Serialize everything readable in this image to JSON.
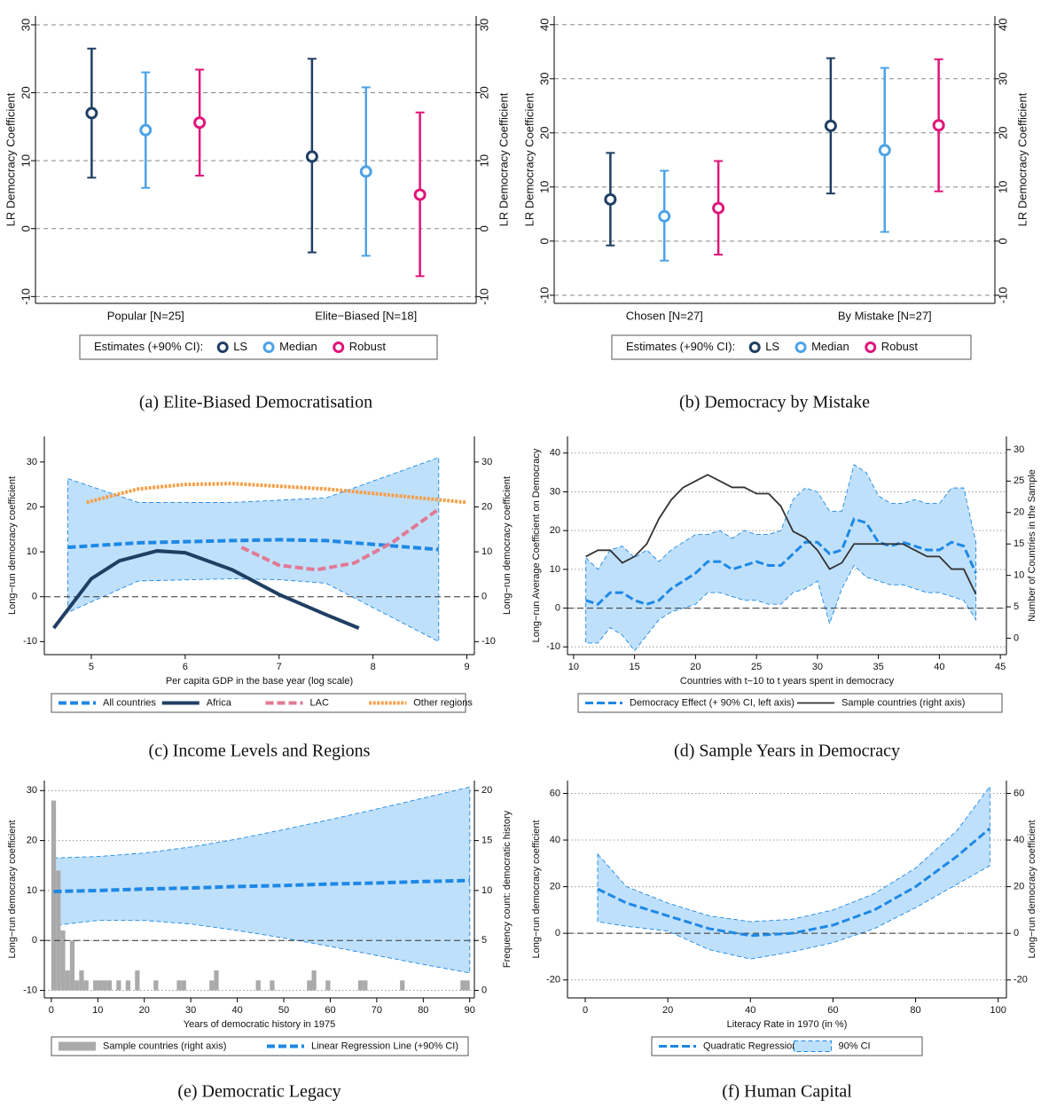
{
  "chart_data": [
    {
      "type": "errorbar",
      "caption": "(a) Elite-Biased Democratisation",
      "ylabel": "LR Democracy Coefficient",
      "y2label": "LR Democracy Coefficient",
      "categories": [
        "Popular [N=25]",
        "Elite−Biased [N=18]"
      ],
      "legend_title": "Estimates (+90% CI):",
      "series": [
        {
          "name": "LS",
          "color": "#1f3f63",
          "values": [
            17,
            10.6
          ],
          "lower": [
            7.5,
            -3.5
          ],
          "upper": [
            26.5,
            25
          ]
        },
        {
          "name": "Median",
          "color": "#4da3e8",
          "values": [
            14.5,
            8.4
          ],
          "lower": [
            6,
            -4
          ],
          "upper": [
            23,
            20.8
          ]
        },
        {
          "name": "Robust",
          "color": "#e0157a",
          "values": [
            15.6,
            5
          ],
          "lower": [
            7.8,
            -7
          ],
          "upper": [
            23.4,
            17.1
          ]
        }
      ],
      "ylim": [
        -11,
        31.3
      ],
      "yticks": [
        -10,
        0,
        10,
        20,
        30
      ],
      "grid": true,
      "grid_style": "dashed",
      "mirror_y": true
    },
    {
      "type": "errorbar",
      "caption": "(b) Democracy by Mistake",
      "ylabel": "LR Democracy Coefficient",
      "y2label": "LR Democracy Coefficient",
      "categories": [
        "Chosen [N=27]",
        "By Mistake [N=27]"
      ],
      "legend_title": "Estimates (+90% CI):",
      "series": [
        {
          "name": "LS",
          "color": "#1f3f63",
          "values": [
            7.7,
            21.3
          ],
          "lower": [
            -0.8,
            8.8
          ],
          "upper": [
            16.3,
            33.8
          ]
        },
        {
          "name": "Median",
          "color": "#4da3e8",
          "values": [
            4.6,
            16.8
          ],
          "lower": [
            -3.6,
            1.7
          ],
          "upper": [
            13,
            32
          ]
        },
        {
          "name": "Robust",
          "color": "#e0157a",
          "values": [
            6.1,
            21.4
          ],
          "lower": [
            -2.5,
            9.2
          ],
          "upper": [
            14.8,
            33.6
          ]
        }
      ],
      "ylim": [
        -11.5,
        41.6
      ],
      "yticks": [
        -10,
        0,
        10,
        20,
        30,
        40
      ],
      "grid": true,
      "grid_style": "dashed",
      "mirror_y": true
    },
    {
      "type": "line",
      "caption": "(c) Income Levels and Regions",
      "xlabel": "Per capita GDP in the base year (log scale)",
      "ylabel": "Long−run democracy coefficient",
      "y2label": "Long−run democracy coefficient",
      "series": [
        {
          "name": "All countries",
          "color": "#1e88e5",
          "dash": "dashed",
          "band_color": "#bfe0fb",
          "x": [
            4.75,
            5.5,
            6.5,
            7,
            7.5,
            8.7
          ],
          "values": [
            11,
            12,
            12.5,
            12.7,
            12.5,
            10.5
          ],
          "upper": [
            26.3,
            21,
            21,
            21.5,
            22,
            31
          ],
          "lower": [
            -3.5,
            3.5,
            4,
            3.8,
            3,
            -10
          ]
        },
        {
          "name": "Africa",
          "color": "#1f3f63",
          "dash": "solid",
          "x": [
            4.6,
            5,
            5.3,
            5.7,
            6,
            6.5,
            7,
            7.5,
            7.85
          ],
          "values": [
            -7,
            4,
            8,
            10.2,
            9.8,
            6,
            0.5,
            -4,
            -7
          ]
        },
        {
          "name": "LAC",
          "color": "#e07a94",
          "dash": "dashed",
          "x": [
            6.6,
            7,
            7.4,
            7.8,
            8.2,
            8.7
          ],
          "values": [
            11,
            7,
            6,
            7.5,
            12,
            19.5
          ]
        },
        {
          "name": "Other regions",
          "color": "#f5a04a",
          "dash": "dotted",
          "x": [
            4.95,
            5.5,
            6,
            6.5,
            7,
            7.5,
            8,
            8.5,
            9
          ],
          "values": [
            21,
            24,
            25,
            25.2,
            24.6,
            24,
            23,
            22,
            21
          ]
        }
      ],
      "xlim": [
        4.5,
        9.08
      ],
      "xticks": [
        5,
        6,
        7,
        8,
        9
      ],
      "ylim": [
        -12.9,
        35.7
      ],
      "yticks": [
        -10,
        0,
        10,
        20,
        30
      ],
      "grid": false,
      "mirror_y": true,
      "reference_line": 0
    },
    {
      "type": "line",
      "caption": "(d) Sample Years in Democracy",
      "xlabel": "Countries with t−10 to t years spent in democracy",
      "ylabel": "Long−run Average Coefficient on Democracy",
      "y2label": "Number of Countries in the Sample",
      "series": [
        {
          "name": "Democracy Effect (+ 90% CI, left axis)",
          "color": "#1e88e5",
          "dash": "dashed",
          "band_color": "#bfe0fb",
          "x": [
            11,
            12,
            13,
            14,
            15,
            16,
            17,
            18,
            19,
            20,
            21,
            22,
            23,
            24,
            25,
            26,
            27,
            28,
            29,
            30,
            31,
            32,
            33,
            34,
            35,
            36,
            37,
            38,
            39,
            40,
            41,
            42,
            43
          ],
          "values": [
            2,
            1,
            4,
            4,
            2,
            1,
            2,
            5,
            7,
            9,
            12,
            12,
            10,
            11,
            12,
            11,
            11,
            14,
            17,
            17,
            14,
            15,
            23,
            22,
            17,
            16,
            17,
            16,
            15,
            15,
            17,
            16,
            9
          ],
          "upper": [
            13,
            10,
            15,
            16,
            13,
            15,
            12,
            15,
            17,
            19,
            19,
            20,
            18,
            20,
            19,
            19,
            20,
            28,
            31,
            30,
            25,
            25,
            37,
            35,
            29,
            27,
            27,
            28,
            27,
            27,
            31,
            31,
            17
          ],
          "lower": [
            -9,
            -9,
            -5,
            -7,
            -11,
            -7,
            -3,
            -1,
            0,
            1,
            4,
            4,
            3,
            2,
            2,
            1,
            1,
            4,
            5,
            7,
            -4,
            5,
            11,
            8,
            7,
            6,
            6,
            5,
            4,
            4,
            3,
            2,
            -3
          ]
        },
        {
          "name": "Sample countries (right axis)",
          "color": "#333333",
          "dash": "solid",
          "axis": "y2",
          "x": [
            11,
            12,
            13,
            14,
            15,
            16,
            17,
            18,
            19,
            20,
            21,
            22,
            23,
            24,
            25,
            26,
            27,
            28,
            29,
            30,
            31,
            32,
            33,
            34,
            35,
            36,
            37,
            38,
            39,
            40,
            41,
            42,
            43
          ],
          "values": [
            13,
            14,
            14,
            12,
            13,
            15,
            19,
            22,
            24,
            25,
            26,
            25,
            24,
            24,
            23,
            23,
            21,
            17,
            16,
            14,
            11,
            12,
            15,
            15,
            15,
            15,
            15,
            14,
            13,
            13,
            11,
            11,
            7
          ]
        }
      ],
      "xlim": [
        9.5,
        45.5
      ],
      "xticks": [
        10,
        15,
        20,
        25,
        30,
        35,
        40,
        45
      ],
      "ylim": [
        -12,
        44.3
      ],
      "yticks": [
        -10,
        0,
        10,
        20,
        30,
        40
      ],
      "y2lim": [
        -2.6,
        32.1
      ],
      "y2ticks": [
        0,
        5,
        10,
        15,
        20,
        25,
        30
      ],
      "grid": true,
      "grid_style": "dotted",
      "reference_line": 0
    },
    {
      "type": "line",
      "caption": "(e) Democratic Legacy",
      "xlabel": "Years of democratic history in 1975",
      "ylabel": "Long−run democracy coefficient",
      "y2label": "Frequency count: democratic history",
      "histogram": {
        "name": "Sample countries (right axis)",
        "color": "#aaaaaa",
        "axis": "y2",
        "bins": [
          0,
          1,
          2,
          3,
          4,
          5,
          6,
          7,
          8,
          9,
          10,
          11,
          12,
          13,
          14,
          15,
          16,
          17,
          18,
          19,
          20,
          21,
          22,
          23,
          24,
          25,
          26,
          27,
          28,
          29,
          30,
          31,
          32,
          33,
          34,
          35,
          36,
          37,
          38,
          39,
          40,
          41,
          42,
          43,
          44,
          45,
          46,
          47,
          48,
          49,
          50,
          51,
          52,
          53,
          54,
          55,
          56,
          57,
          58,
          59,
          60,
          61,
          62,
          63,
          64,
          65,
          66,
          67,
          68,
          69,
          70,
          71,
          72,
          73,
          74,
          75,
          76,
          77,
          78,
          79,
          80,
          81,
          82,
          83,
          84,
          85,
          86,
          87,
          88,
          89,
          90
        ],
        "counts": [
          19,
          12,
          6,
          2,
          5,
          1,
          2,
          1,
          0,
          1,
          1,
          1,
          1,
          0,
          1,
          0,
          1,
          0,
          2,
          0,
          0,
          0,
          1,
          0,
          0,
          0,
          0,
          1,
          1,
          0,
          0,
          0,
          0,
          0,
          1,
          2,
          0,
          0,
          0,
          0,
          0,
          0,
          0,
          0,
          1,
          0,
          0,
          1,
          0,
          0,
          0,
          0,
          0,
          0,
          0,
          1,
          2,
          0,
          0,
          1,
          0,
          0,
          0,
          0,
          0,
          0,
          1,
          1,
          0,
          0,
          0,
          0,
          0,
          0,
          0,
          1,
          0,
          0,
          0,
          0,
          0,
          0,
          0,
          0,
          0,
          0,
          0,
          0,
          1,
          1
        ]
      },
      "series": [
        {
          "name": "Linear Regression Line (+90% CI)",
          "color": "#1e88e5",
          "dash": "dashed",
          "band_color": "#bfe0fb",
          "x": [
            0.5,
            10,
            20,
            30,
            40,
            50,
            60,
            70,
            80,
            90
          ],
          "values": [
            9.8,
            10,
            10.3,
            10.5,
            10.8,
            11,
            11.3,
            11.5,
            11.8,
            12
          ],
          "upper": [
            16.5,
            16.8,
            17.5,
            18.7,
            20.3,
            22.2,
            24.2,
            26.3,
            28.5,
            30.7
          ],
          "lower": [
            3,
            4,
            4,
            3.3,
            2,
            0.5,
            -1.2,
            -3,
            -4.8,
            -6.5
          ]
        }
      ],
      "xlim": [
        -1.5,
        91
      ],
      "xticks": [
        0,
        10,
        20,
        30,
        40,
        50,
        60,
        70,
        80,
        90
      ],
      "ylim": [
        -11.5,
        32
      ],
      "yticks": [
        -10,
        0,
        10,
        20,
        30
      ],
      "y2lim": [
        -0.75,
        21
      ],
      "y2ticks": [
        0,
        5,
        10,
        15,
        20
      ],
      "grid": true,
      "grid_style": "dotted",
      "reference_line": 0
    },
    {
      "type": "line",
      "caption": "(f) Human Capital",
      "xlabel": "Literacy Rate in 1970 (in %)",
      "ylabel": "Long−run democracy coefficient",
      "y2label": "Long−run democracy coefficient",
      "series": [
        {
          "name": "Quadratic Regression Line",
          "band_name": "90% CI",
          "color": "#1e88e5",
          "dash": "dashed",
          "band_color": "#bfe0fb",
          "x": [
            3,
            10,
            20,
            30,
            40,
            50,
            60,
            70,
            80,
            90,
            98
          ],
          "values": [
            19,
            13,
            7.5,
            2,
            -1,
            0,
            3.5,
            10,
            20,
            33,
            45
          ],
          "upper": [
            34,
            20,
            13,
            7.5,
            5,
            6,
            10,
            17,
            28,
            44,
            63
          ],
          "lower": [
            5,
            3,
            1,
            -7,
            -11,
            -8,
            -4,
            2,
            11,
            21,
            29
          ]
        }
      ],
      "xlim": [
        -4.3,
        102
      ],
      "xticks": [
        0,
        20,
        40,
        60,
        80,
        100
      ],
      "ylim": [
        -27.7,
        65.5
      ],
      "yticks": [
        -20,
        0,
        20,
        40,
        60
      ],
      "grid": true,
      "grid_style": "dotted",
      "mirror_y": true,
      "reference_line": 0
    }
  ]
}
